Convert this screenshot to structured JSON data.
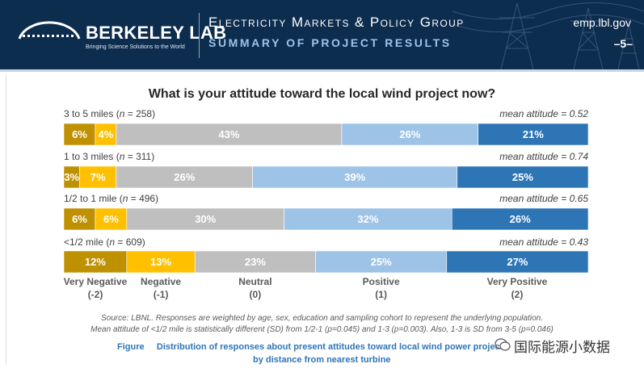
{
  "header": {
    "logo_name": "BERKELEY LAB",
    "logo_tagline": "Bringing Science Solutions to the World",
    "title": "Electricity Markets & Policy Group",
    "subtitle": "SUMMARY OF PROJECT RESULTS",
    "url": "emp.lbl.gov",
    "page": "–5–"
  },
  "colors": {
    "header_bg": "#0d2d4f",
    "very_negative": "#bf9000",
    "negative": "#ffc000",
    "neutral": "#bfbfbf",
    "positive": "#9dc3e6",
    "very_positive": "#2e75b6"
  },
  "chart_data": {
    "type": "bar",
    "orientation": "horizontal",
    "stacked": "100%",
    "title": "What is your attitude toward the local wind project now?",
    "categories": [
      {
        "name": "3 to 5 miles",
        "n": "258",
        "mean": "0.52"
      },
      {
        "name": "1 to 3 miles",
        "n": "311",
        "mean": "0.74"
      },
      {
        "name": "1/2 to 1 mile",
        "n": "496",
        "mean": "0.65"
      },
      {
        "name": "<1/2 mile",
        "n": "609",
        "mean": "0.43"
      }
    ],
    "series": [
      {
        "name": "Very Negative",
        "score": "(-2)",
        "color": "#bf9000",
        "values": [
          6,
          3,
          6,
          12
        ]
      },
      {
        "name": "Negative",
        "score": "(-1)",
        "color": "#ffc000",
        "values": [
          4,
          7,
          6,
          13
        ]
      },
      {
        "name": "Neutral",
        "score": "(0)",
        "color": "#bfbfbf",
        "values": [
          43,
          26,
          30,
          23
        ]
      },
      {
        "name": "Positive",
        "score": "(1)",
        "color": "#9dc3e6",
        "values": [
          26,
          39,
          32,
          25
        ]
      },
      {
        "name": "Very Positive",
        "score": "(2)",
        "color": "#2e75b6",
        "values": [
          21,
          25,
          26,
          27
        ]
      }
    ],
    "unit": "%",
    "mean_prefix": "mean attitude = ",
    "n_prefix": "n",
    "xlim": [
      0,
      100
    ],
    "legend": "bottom"
  },
  "source_text": "Source: LBNL.  Responses are weighted by age, sex, education and sampling cohort to represent the underlying population.",
  "significance_text": "Mean attitude of <1/2 mile is statistically different (SD) from 1/2-1 (p=0.045) and 1-3 (p=0.003). Also, 1-3 is SD from 3-5 (p=0.046)",
  "figure": {
    "label": "Figure",
    "caption_line1": "Distribution of responses about present attitudes toward local wind power projects",
    "caption_line2": "by distance from nearest turbine"
  },
  "watermark": "国际能源小数据"
}
